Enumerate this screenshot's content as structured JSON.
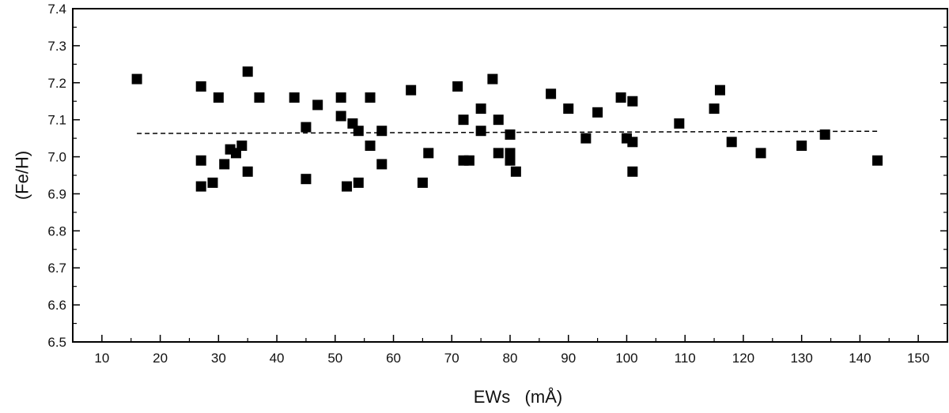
{
  "chart_data": {
    "type": "scatter",
    "xlabel": "EWs   (mÅ)",
    "ylabel": "(Fe/H)",
    "xlim": [
      5,
      155
    ],
    "ylim": [
      6.5,
      7.4
    ],
    "x_ticks": [
      10,
      20,
      30,
      40,
      50,
      60,
      70,
      80,
      90,
      100,
      110,
      120,
      130,
      140,
      150
    ],
    "y_ticks": [
      6.5,
      6.6,
      6.7,
      6.8,
      6.9,
      7.0,
      7.1,
      7.2,
      7.3,
      7.4
    ],
    "x_tick_labels": [
      "10",
      "20",
      "30",
      "40",
      "50",
      "60",
      "70",
      "80",
      "90",
      "100",
      "110",
      "120",
      "130",
      "140",
      "150"
    ],
    "y_tick_labels": [
      "6.5",
      "6.6",
      "6.7",
      "6.8",
      "6.9",
      "7.0",
      "7.1",
      "7.2",
      "7.3",
      "7.4"
    ],
    "grid": false,
    "marker": "square",
    "marker_color": "#000000",
    "points": [
      [
        16,
        7.21
      ],
      [
        27,
        7.19
      ],
      [
        27,
        6.99
      ],
      [
        27,
        6.92
      ],
      [
        29,
        6.93
      ],
      [
        30,
        7.16
      ],
      [
        31,
        6.98
      ],
      [
        32,
        7.02
      ],
      [
        33,
        7.01
      ],
      [
        34,
        7.03
      ],
      [
        35,
        7.23
      ],
      [
        35,
        6.96
      ],
      [
        37,
        7.16
      ],
      [
        43,
        7.16
      ],
      [
        45,
        7.08
      ],
      [
        45,
        6.94
      ],
      [
        47,
        7.14
      ],
      [
        51,
        7.16
      ],
      [
        51,
        7.11
      ],
      [
        52,
        6.92
      ],
      [
        53,
        7.09
      ],
      [
        54,
        7.07
      ],
      [
        54,
        6.93
      ],
      [
        56,
        7.16
      ],
      [
        56,
        7.03
      ],
      [
        58,
        7.07
      ],
      [
        58,
        6.98
      ],
      [
        63,
        7.18
      ],
      [
        65,
        6.93
      ],
      [
        66,
        7.01
      ],
      [
        71,
        7.19
      ],
      [
        72,
        7.1
      ],
      [
        72,
        6.99
      ],
      [
        73,
        6.99
      ],
      [
        75,
        7.13
      ],
      [
        75,
        7.07
      ],
      [
        77,
        7.21
      ],
      [
        78,
        7.1
      ],
      [
        78,
        7.01
      ],
      [
        80,
        7.06
      ],
      [
        80,
        7.01
      ],
      [
        80,
        6.99
      ],
      [
        81,
        6.96
      ],
      [
        87,
        7.17
      ],
      [
        90,
        7.13
      ],
      [
        93,
        7.05
      ],
      [
        95,
        7.12
      ],
      [
        99,
        7.16
      ],
      [
        100,
        7.05
      ],
      [
        101,
        7.15
      ],
      [
        101,
        7.04
      ],
      [
        101,
        6.96
      ],
      [
        109,
        7.09
      ],
      [
        115,
        7.13
      ],
      [
        116,
        7.18
      ],
      [
        118,
        7.04
      ],
      [
        123,
        7.01
      ],
      [
        130,
        7.03
      ],
      [
        134,
        7.06
      ],
      [
        143,
        6.99
      ]
    ],
    "fit_line": {
      "style": "dashed",
      "x": [
        16,
        143
      ],
      "y": [
        7.063,
        7.069
      ]
    }
  }
}
